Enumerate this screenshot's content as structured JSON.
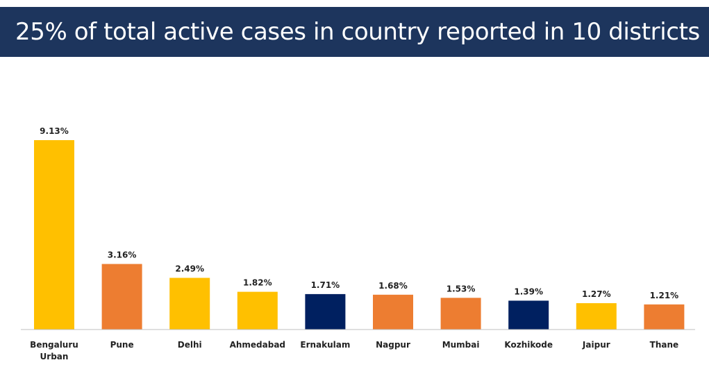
{
  "header": {
    "title": "25% of total active cases in country reported in 10 districts"
  },
  "colors": {
    "banner": "#1d355d",
    "yellow": "#ffc000",
    "orange": "#ed7d31",
    "navy": "#002060"
  },
  "chart_data": {
    "type": "bar",
    "title": "25% of total active cases in country reported in 10 districts",
    "xlabel": "",
    "ylabel": "",
    "unit": "%",
    "grid": false,
    "ylim": [
      0,
      9.13
    ],
    "categories": [
      "Bengaluru Urban",
      "Pune",
      "Delhi",
      "Ahmedabad",
      "Ernakulam",
      "Nagpur",
      "Mumbai",
      "Kozhikode",
      "Jaipur",
      "Thane"
    ],
    "tick_label_lines": [
      [
        "Bengaluru",
        "Urban"
      ],
      [
        "Pune"
      ],
      [
        "Delhi"
      ],
      [
        "Ahmedabad"
      ],
      [
        "Ernakulam"
      ],
      [
        "Nagpur"
      ],
      [
        "Mumbai"
      ],
      [
        "Kozhikode"
      ],
      [
        "Jaipur"
      ],
      [
        "Thane"
      ]
    ],
    "values": [
      9.13,
      3.16,
      2.49,
      1.82,
      1.71,
      1.68,
      1.53,
      1.39,
      1.27,
      1.21
    ],
    "value_labels": [
      "9.13%",
      "3.16%",
      "2.49%",
      "1.82%",
      "1.71%",
      "1.68%",
      "1.53%",
      "1.39%",
      "1.27%",
      "1.21%"
    ],
    "bar_colors": [
      "#ffc000",
      "#ed7d31",
      "#ffc000",
      "#ffc000",
      "#002060",
      "#ed7d31",
      "#ed7d31",
      "#002060",
      "#ffc000",
      "#ed7d31"
    ]
  }
}
